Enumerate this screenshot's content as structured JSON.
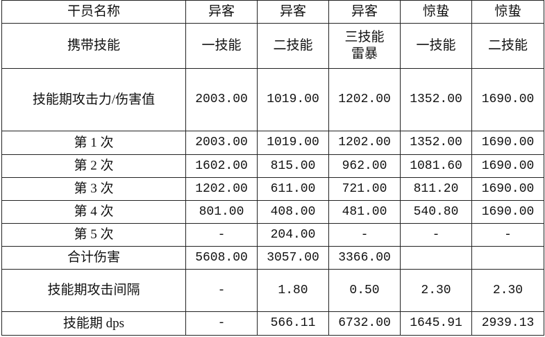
{
  "header_row": {
    "label": "干员名称",
    "operators": [
      "异客",
      "异客",
      "异客",
      "惊蛰",
      "惊蛰"
    ]
  },
  "skill_row": {
    "label": "携带技能",
    "skills": [
      "一技能",
      "二技能",
      "三技能\n雷暴",
      "一技能",
      "二技能"
    ]
  },
  "rows": [
    {
      "label": "技能期攻击力/伤害值",
      "values": [
        "2003.00",
        "1019.00",
        "1202.00",
        "1352.00",
        "1690.00"
      ]
    },
    {
      "label": "第 1 次",
      "values": [
        "2003.00",
        "1019.00",
        "1202.00",
        "1352.00",
        "1690.00"
      ]
    },
    {
      "label": "第 2 次",
      "values": [
        "1602.00",
        "815.00",
        "962.00",
        "1081.60",
        "1690.00"
      ]
    },
    {
      "label": "第 3 次",
      "values": [
        "1202.00",
        "611.00",
        "721.00",
        "811.20",
        "1690.00"
      ]
    },
    {
      "label": "第 4 次",
      "values": [
        "801.00",
        "408.00",
        "481.00",
        "540.80",
        "1690.00"
      ]
    },
    {
      "label": "第 5 次",
      "values": [
        "-",
        "204.00",
        "-",
        "-",
        "-"
      ]
    },
    {
      "label": "合计伤害",
      "values": [
        "5608.00",
        "3057.00",
        "3366.00",
        "",
        ""
      ]
    },
    {
      "label": "技能期攻击间隔",
      "values": [
        "-",
        "1.80",
        "0.50",
        "2.30",
        "2.30"
      ]
    },
    {
      "label": "技能期 dps",
      "values": [
        "-",
        "566.11",
        "6732.00",
        "1645.91",
        "2939.13"
      ]
    }
  ]
}
